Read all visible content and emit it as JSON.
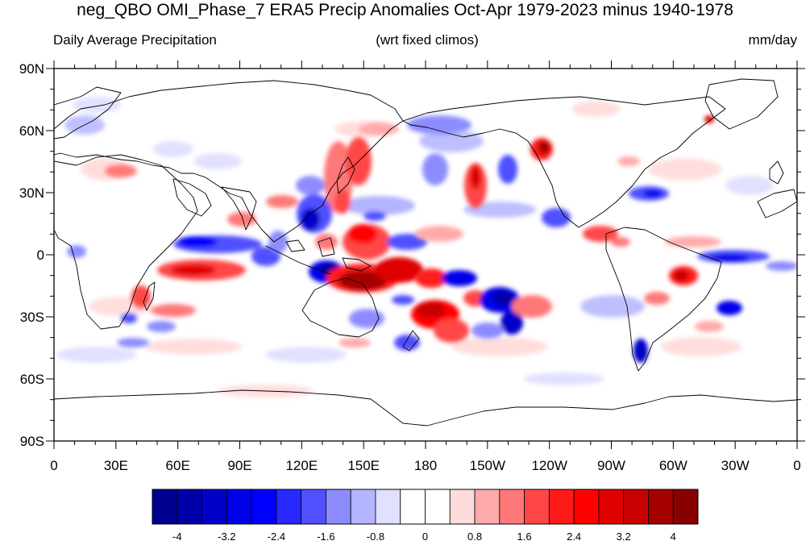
{
  "title": "neg_QBO OMI_Phase_7 ERA5 Precip Anomalies Oct-Apr 1979-2023 minus 1940-1978",
  "subtitle_left": "Daily Average Precipitation",
  "subtitle_center": "(wrt fixed climos)",
  "subtitle_right": "mm/day",
  "axes": {
    "x_ticks": [
      "0",
      "30E",
      "60E",
      "90E",
      "120E",
      "150E",
      "180",
      "150W",
      "120W",
      "90W",
      "60W",
      "30W",
      "0"
    ],
    "y_ticks": [
      "90N",
      "60N",
      "30N",
      "0",
      "30S",
      "60S",
      "90S"
    ]
  },
  "colorbar": {
    "labels": [
      "-4",
      "-3.2",
      "-2.4",
      "-1.6",
      "-0.8",
      "0",
      "0.8",
      "1.6",
      "2.4",
      "3.2",
      "4"
    ],
    "colors": [
      "#000090",
      "#0000a8",
      "#0000c8",
      "#0000e8",
      "#0000ff",
      "#2828ff",
      "#5050ff",
      "#8c8cff",
      "#b4b4ff",
      "#e0e0ff",
      "#ffffff",
      "#ffffff",
      "#ffdcdc",
      "#ffaaaa",
      "#ff7878",
      "#ff4646",
      "#ff1a1a",
      "#ff0000",
      "#e00000",
      "#c80000",
      "#a40000",
      "#880000"
    ]
  },
  "anomaly_colors": {
    "positive_light": "#ffd8d8",
    "positive_mid": "#ff8080",
    "positive_strong": "#e00000",
    "positive_max": "#900000",
    "negative_light": "#dcdcff",
    "negative_mid": "#7070ff",
    "negative_strong": "#0000e0"
  }
}
